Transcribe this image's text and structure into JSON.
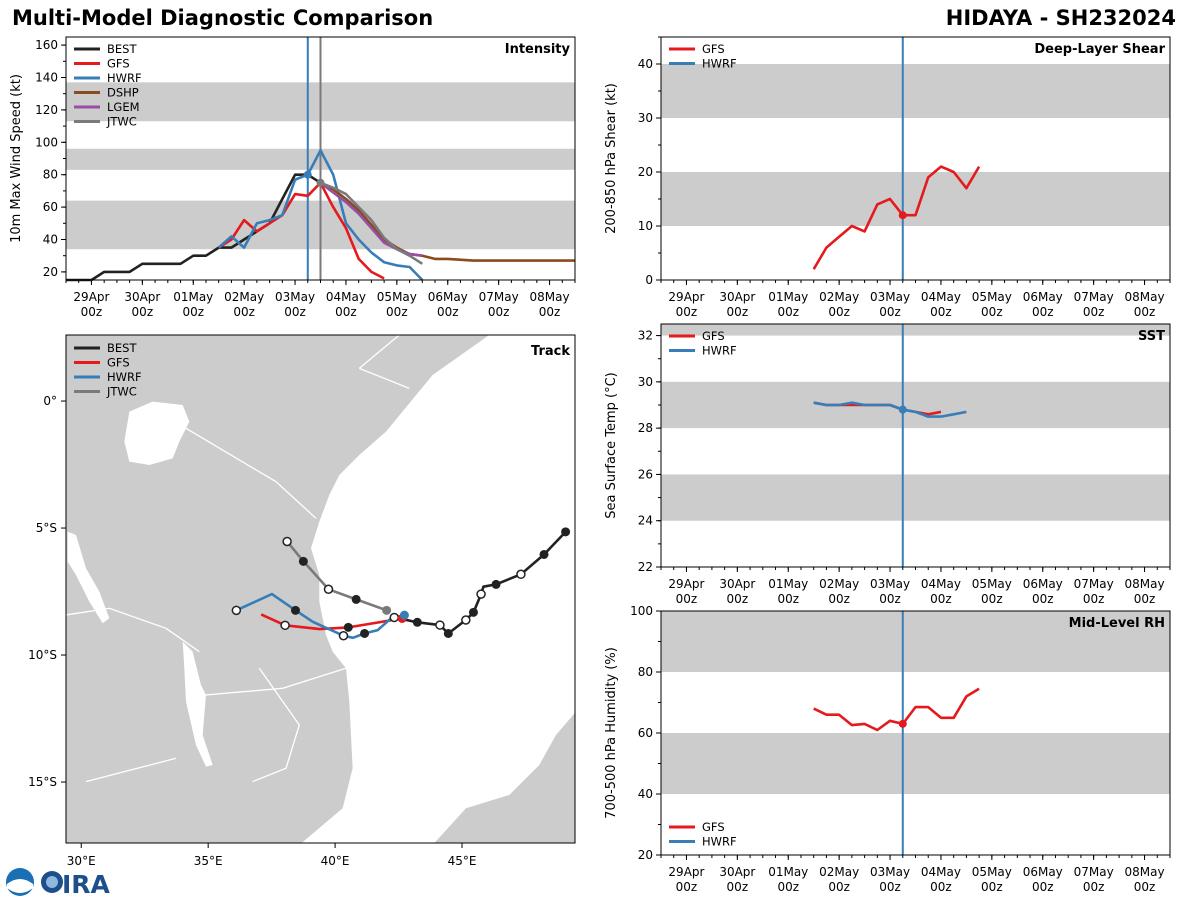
{
  "header": {
    "title": "Multi-Model Diagnostic Comparison",
    "storm": "HIDAYA - SH232024"
  },
  "logo": {
    "text": "CIRA",
    "agency": "NOAA"
  },
  "colors": {
    "BEST": "#222222",
    "GFS": "#e41a1c",
    "HWRF": "#377eb8",
    "DSHP": "#8c4a1e",
    "LGEM": "#984ea3",
    "JTWC": "#7a7a7a",
    "band": "#cccccc"
  },
  "time_axis": {
    "range": [
      "04/28 12z",
      "05/08 12z"
    ],
    "ticks": [
      [
        "29Apr",
        "00z"
      ],
      [
        "30Apr",
        "00z"
      ],
      [
        "01May",
        "00z"
      ],
      [
        "02May",
        "00z"
      ],
      [
        "03May",
        "00z"
      ],
      [
        "04May",
        "00z"
      ],
      [
        "05May",
        "00z"
      ],
      [
        "06May",
        "00z"
      ],
      [
        "07May",
        "00z"
      ],
      [
        "08May",
        "00z"
      ]
    ],
    "tick_times": [
      "04/29 00z",
      "04/30 00z",
      "05/01 00z",
      "05/02 00z",
      "05/03 00z",
      "05/04 00z",
      "05/05 00z",
      "05/06 00z",
      "05/07 00z",
      "05/08 00z"
    ]
  },
  "chart_data": [
    {
      "id": "intensity",
      "type": "line",
      "title": "Intensity",
      "ylabel": "10m Max Wind Speed (kt)",
      "ylim": [
        15,
        165
      ],
      "yticks": [
        20,
        40,
        60,
        80,
        100,
        120,
        140,
        160
      ],
      "bands": [
        [
          34,
          64
        ],
        [
          83,
          96
        ],
        [
          113,
          137
        ]
      ],
      "vlines": [
        {
          "time": "05/03 06z",
          "color": "HWRF"
        },
        {
          "time": "05/03 12z",
          "color": "JTWC"
        }
      ],
      "legend": "top-left",
      "series": [
        {
          "name": "BEST",
          "points": [
            [
              "04/28 12z",
              15
            ],
            [
              "04/29 00z",
              15
            ],
            [
              "04/29 06z",
              20
            ],
            [
              "04/29 12z",
              20
            ],
            [
              "04/29 18z",
              20
            ],
            [
              "04/30 00z",
              25
            ],
            [
              "04/30 06z",
              25
            ],
            [
              "04/30 12z",
              25
            ],
            [
              "04/30 18z",
              25
            ],
            [
              "05/01 00z",
              30
            ],
            [
              "05/01 06z",
              30
            ],
            [
              "05/01 12z",
              35
            ],
            [
              "05/01 18z",
              35
            ],
            [
              "05/02 00z",
              40
            ],
            [
              "05/02 06z",
              45
            ],
            [
              "05/02 12z",
              50
            ],
            [
              "05/02 18z",
              65
            ],
            [
              "05/03 00z",
              80
            ],
            [
              "05/03 06z",
              80
            ],
            [
              "05/03 12z",
              75
            ]
          ]
        },
        {
          "name": "GFS",
          "points": [
            [
              "05/01 12z",
              35
            ],
            [
              "05/01 18z",
              40
            ],
            [
              "05/02 00z",
              52
            ],
            [
              "05/02 06z",
              45
            ],
            [
              "05/02 12z",
              50
            ],
            [
              "05/02 18z",
              55
            ],
            [
              "05/03 00z",
              68
            ],
            [
              "05/03 06z",
              67
            ],
            [
              "05/03 12z",
              75
            ],
            [
              "05/03 18z",
              60
            ],
            [
              "05/04 00z",
              47
            ],
            [
              "05/04 06z",
              28
            ],
            [
              "05/04 12z",
              20
            ],
            [
              "05/04 18z",
              16
            ]
          ]
        },
        {
          "name": "HWRF",
          "points": [
            [
              "05/01 12z",
              35
            ],
            [
              "05/01 18z",
              42
            ],
            [
              "05/02 00z",
              35
            ],
            [
              "05/02 06z",
              50
            ],
            [
              "05/02 12z",
              52
            ],
            [
              "05/02 18z",
              55
            ],
            [
              "05/03 00z",
              77
            ],
            [
              "05/03 06z",
              80
            ],
            [
              "05/03 12z",
              95
            ],
            [
              "05/03 18z",
              80
            ],
            [
              "05/04 00z",
              50
            ],
            [
              "05/04 06z",
              40
            ],
            [
              "05/04 12z",
              32
            ],
            [
              "05/04 18z",
              26
            ],
            [
              "05/05 00z",
              24
            ],
            [
              "05/05 06z",
              23
            ],
            [
              "05/05 12z",
              15
            ]
          ],
          "marker_at": "05/03 06z"
        },
        {
          "name": "DSHP",
          "points": [
            [
              "05/03 12z",
              75
            ],
            [
              "05/03 18z",
              71
            ],
            [
              "05/04 00z",
              65
            ],
            [
              "05/04 06z",
              58
            ],
            [
              "05/04 12z",
              49
            ],
            [
              "05/04 18z",
              40
            ],
            [
              "05/05 00z",
              35
            ],
            [
              "05/05 06z",
              31
            ],
            [
              "05/05 12z",
              30
            ],
            [
              "05/05 18z",
              28
            ],
            [
              "05/06 00z",
              28
            ],
            [
              "05/06 12z",
              27
            ],
            [
              "05/07 00z",
              27
            ],
            [
              "05/07 12z",
              27
            ],
            [
              "05/08 00z",
              27
            ],
            [
              "05/08 12z",
              27
            ]
          ]
        },
        {
          "name": "LGEM",
          "points": [
            [
              "05/03 12z",
              75
            ],
            [
              "05/03 18z",
              69
            ],
            [
              "05/04 00z",
              63
            ],
            [
              "05/04 06z",
              56
            ],
            [
              "05/04 12z",
              47
            ],
            [
              "05/04 18z",
              38
            ],
            [
              "05/05 00z",
              34
            ],
            [
              "05/05 06z",
              31
            ],
            [
              "05/05 12z",
              30
            ]
          ]
        },
        {
          "name": "JTWC",
          "points": [
            [
              "05/03 12z",
              75
            ],
            [
              "05/03 18z",
              72
            ],
            [
              "05/04 00z",
              68
            ],
            [
              "05/04 06z",
              60
            ],
            [
              "05/04 12z",
              52
            ],
            [
              "05/04 18z",
              41
            ],
            [
              "05/05 00z",
              34
            ],
            [
              "05/05 06z",
              30
            ],
            [
              "05/05 12z",
              25
            ]
          ],
          "marker_at": "05/03 12z"
        }
      ]
    },
    {
      "id": "shear",
      "type": "line",
      "title": "Deep-Layer Shear",
      "ylabel": "200-850 hPa Shear (kt)",
      "ylim": [
        0,
        45
      ],
      "yticks": [
        0,
        10,
        20,
        30,
        40
      ],
      "bands": [
        [
          10,
          20
        ],
        [
          30,
          40
        ]
      ],
      "vlines": [
        {
          "time": "05/03 06z",
          "color": "HWRF"
        }
      ],
      "legend": "top-left",
      "series": [
        {
          "name": "GFS",
          "points": [
            [
              "05/01 12z",
              2
            ],
            [
              "05/01 18z",
              6
            ],
            [
              "05/02 00z",
              8
            ],
            [
              "05/02 06z",
              10
            ],
            [
              "05/02 12z",
              9
            ],
            [
              "05/02 18z",
              14
            ],
            [
              "05/03 00z",
              15
            ],
            [
              "05/03 06z",
              12
            ],
            [
              "05/03 12z",
              12
            ],
            [
              "05/03 18z",
              19
            ],
            [
              "05/04 00z",
              21
            ],
            [
              "05/04 06z",
              20
            ],
            [
              "05/04 12z",
              17
            ],
            [
              "05/04 18z",
              21
            ]
          ],
          "marker_at": "05/03 06z"
        },
        {
          "name": "HWRF",
          "points": []
        }
      ]
    },
    {
      "id": "sst",
      "type": "line",
      "title": "SST",
      "ylabel": "Sea Surface Temp (°C)",
      "ylim": [
        22,
        32.5
      ],
      "yticks": [
        22,
        24,
        26,
        28,
        30,
        32
      ],
      "bands": [
        [
          24,
          26
        ],
        [
          28,
          30
        ],
        [
          32,
          34
        ]
      ],
      "vlines": [
        {
          "time": "05/03 06z",
          "color": "HWRF"
        }
      ],
      "legend": "top-left",
      "series": [
        {
          "name": "GFS",
          "points": [
            [
              "05/01 12z",
              29.1
            ],
            [
              "05/01 18z",
              29.0
            ],
            [
              "05/02 00z",
              29.0
            ],
            [
              "05/02 06z",
              29.0
            ],
            [
              "05/02 12z",
              29.0
            ],
            [
              "05/02 18z",
              29.0
            ],
            [
              "05/03 00z",
              29.0
            ],
            [
              "05/03 06z",
              28.8
            ],
            [
              "05/03 12z",
              28.7
            ],
            [
              "05/03 18z",
              28.6
            ],
            [
              "05/04 00z",
              28.7
            ]
          ]
        },
        {
          "name": "HWRF",
          "points": [
            [
              "05/01 12z",
              29.1
            ],
            [
              "05/01 18z",
              29.0
            ],
            [
              "05/02 00z",
              29.0
            ],
            [
              "05/02 06z",
              29.1
            ],
            [
              "05/02 12z",
              29.0
            ],
            [
              "05/02 18z",
              29.0
            ],
            [
              "05/03 00z",
              29.0
            ],
            [
              "05/03 06z",
              28.8
            ],
            [
              "05/03 12z",
              28.7
            ],
            [
              "05/03 18z",
              28.5
            ],
            [
              "05/04 00z",
              28.5
            ],
            [
              "05/04 06z",
              28.6
            ],
            [
              "05/04 12z",
              28.7
            ]
          ],
          "marker_at": "05/03 06z"
        }
      ]
    },
    {
      "id": "rh",
      "type": "line",
      "title": "Mid-Level RH",
      "ylabel": "700-500 hPa Humidity (%)",
      "ylim": [
        20,
        100
      ],
      "yticks": [
        20,
        40,
        60,
        80,
        100
      ],
      "bands": [
        [
          40,
          60
        ],
        [
          80,
          100
        ]
      ],
      "vlines": [
        {
          "time": "05/03 06z",
          "color": "HWRF"
        }
      ],
      "legend": "bottom-left",
      "series": [
        {
          "name": "GFS",
          "points": [
            [
              "05/01 12z",
              68
            ],
            [
              "05/01 18z",
              66
            ],
            [
              "05/02 00z",
              66
            ],
            [
              "05/02 06z",
              62.6
            ],
            [
              "05/02 12z",
              63
            ],
            [
              "05/02 18z",
              61
            ],
            [
              "05/03 00z",
              64
            ],
            [
              "05/03 06z",
              63
            ],
            [
              "05/03 12z",
              68.5
            ],
            [
              "05/03 18z",
              68.5
            ],
            [
              "05/04 00z",
              65
            ],
            [
              "05/04 06z",
              65
            ],
            [
              "05/04 12z",
              72
            ],
            [
              "05/04 18z",
              74.5
            ]
          ],
          "marker_at": "05/03 06z"
        },
        {
          "name": "HWRF",
          "points": []
        }
      ]
    },
    {
      "id": "track",
      "type": "scatter",
      "title": "Track",
      "xlim": [
        29.4,
        49.45
      ],
      "ylim": [
        -17.4,
        2.6
      ],
      "xticks": [
        [
          30,
          "30°E"
        ],
        [
          35,
          "35°E"
        ],
        [
          40,
          "40°E"
        ],
        [
          45,
          "45°E"
        ]
      ],
      "yticks": [
        [
          0,
          "0°"
        ],
        [
          -5,
          "5°S"
        ],
        [
          -10,
          "10°S"
        ],
        [
          -15,
          "15°S"
        ]
      ],
      "legend": "top-left",
      "series": [
        {
          "name": "BEST",
          "points": [
            [
              49.08,
              -5.15,
              "filled"
            ],
            [
              48.23,
              -6.04,
              "filled"
            ],
            [
              47.32,
              -6.82,
              "open"
            ],
            [
              46.34,
              -7.22,
              "filled"
            ],
            [
              45.84,
              -7.31,
              null
            ],
            [
              45.75,
              -7.6,
              "open"
            ],
            [
              45.45,
              -8.32,
              "filled"
            ],
            [
              45.15,
              -8.62,
              "open"
            ],
            [
              44.46,
              -9.15,
              "filled"
            ],
            [
              44.13,
              -8.82,
              "open"
            ],
            [
              43.24,
              -8.71,
              "filled"
            ],
            [
              42.33,
              -8.52,
              "open"
            ]
          ]
        },
        {
          "name": "GFS",
          "points": [
            [
              42.64,
              -8.56,
              "current"
            ],
            [
              40.52,
              -8.91,
              "filled"
            ],
            [
              39.39,
              -8.98,
              null
            ],
            [
              38.03,
              -8.83,
              "open"
            ],
            [
              37.09,
              -8.4,
              null
            ]
          ]
        },
        {
          "name": "HWRF",
          "points": [
            [
              42.73,
              -8.43,
              "current"
            ],
            [
              42.2,
              -8.56,
              null
            ],
            [
              41.68,
              -9.02,
              null
            ],
            [
              41.16,
              -9.15,
              "filled"
            ],
            [
              40.7,
              -9.32,
              null
            ],
            [
              40.33,
              -9.24,
              "open"
            ],
            [
              39.12,
              -8.69,
              null
            ],
            [
              38.44,
              -8.24,
              "filled"
            ],
            [
              37.51,
              -7.6,
              null
            ],
            [
              36.11,
              -8.24,
              "open"
            ]
          ]
        },
        {
          "name": "JTWC",
          "points": [
            [
              42.03,
              -8.24,
              "current"
            ],
            [
              40.83,
              -7.81,
              "filled"
            ],
            [
              39.74,
              -7.41,
              "open"
            ],
            [
              38.75,
              -6.31,
              "filled"
            ],
            [
              38.11,
              -5.53,
              "open"
            ]
          ]
        }
      ]
    }
  ]
}
